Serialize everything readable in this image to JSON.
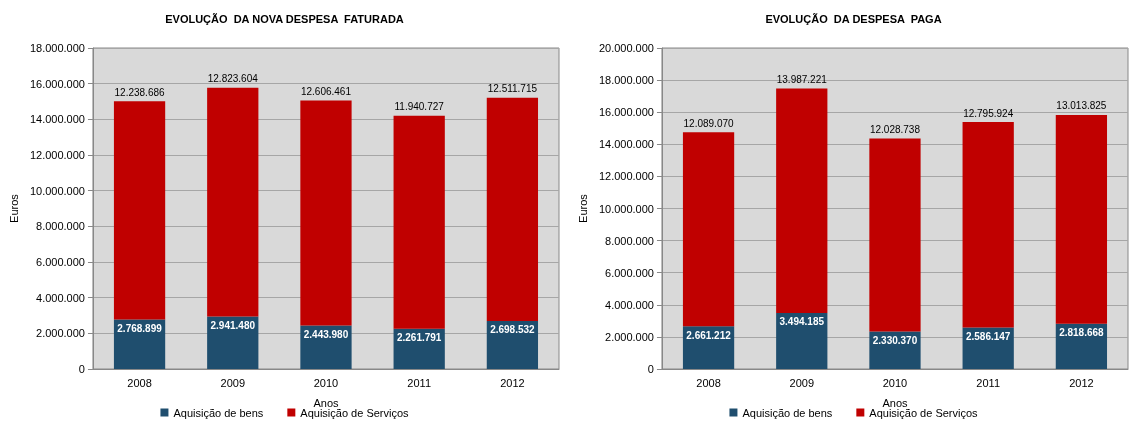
{
  "chart_data": [
    {
      "type": "bar",
      "title": "EVOLUÇÃO  DA NOVA DESPESA  FATURADA",
      "xlabel": "Anos",
      "ylabel": "Euros",
      "categories": [
        "2008",
        "2009",
        "2010",
        "2011",
        "2012"
      ],
      "stacked": true,
      "series": [
        {
          "name": "Aquisição de bens",
          "color": "#1f4e6e",
          "values": [
            2768899,
            2941480,
            2443980,
            2261791,
            2698532
          ],
          "value_labels": [
            "2.768.899",
            "2.941.480",
            "2.443.980",
            "2.261.791",
            "2.698.532"
          ]
        },
        {
          "name": "Aquisição de Serviços",
          "color": "#c00000",
          "values": [
            12238686,
            12823604,
            12606461,
            11940727,
            12511715
          ],
          "value_labels": [
            "12.238.686",
            "12.823.604",
            "12.606.461",
            "11.940.727",
            "12.511.715"
          ]
        }
      ],
      "ylim": [
        0,
        18000000
      ],
      "yticks": [
        0,
        {
          "value": 2000000,
          "label": "2.000.000"
        },
        {
          "value": 4000000,
          "label": "4.000.000"
        },
        {
          "value": 6000000,
          "label": "6.000.000"
        },
        {
          "value": 8000000,
          "label": "8.000.000"
        },
        {
          "value": 10000000,
          "label": "10.000.000"
        },
        {
          "value": 12000000,
          "label": "12.000.000"
        },
        {
          "value": 14000000,
          "label": "14.000.000"
        },
        {
          "value": 16000000,
          "label": "16.000.000"
        },
        {
          "value": 18000000,
          "label": "18.000.000"
        }
      ],
      "grid": "y",
      "legend": "bottom"
    },
    {
      "type": "bar",
      "title": "EVOLUÇÃO  DA DESPESA  PAGA",
      "xlabel": "Anos",
      "ylabel": "Euros",
      "categories": [
        "2008",
        "2009",
        "2010",
        "2011",
        "2012"
      ],
      "stacked": true,
      "series": [
        {
          "name": "Aquisição de bens",
          "color": "#1f4e6e",
          "values": [
            2661212,
            3494185,
            2330370,
            2586147,
            2818668
          ],
          "value_labels": [
            "2.661.212",
            "3.494.185",
            "2.330.370",
            "2.586.147",
            "2.818.668"
          ]
        },
        {
          "name": "Aquisição de Serviços",
          "color": "#c00000",
          "values": [
            12089070,
            13987221,
            12028738,
            12795924,
            13013825
          ],
          "value_labels": [
            "12.089.070",
            "13.987.221",
            "12.028.738",
            "12.795.924",
            "13.013.825"
          ]
        }
      ],
      "ylim": [
        0,
        20000000
      ],
      "yticks": [
        0,
        {
          "value": 2000000,
          "label": "2.000.000"
        },
        {
          "value": 4000000,
          "label": "4.000.000"
        },
        {
          "value": 6000000,
          "label": "6.000.000"
        },
        {
          "value": 8000000,
          "label": "8.000.000"
        },
        {
          "value": 10000000,
          "label": "10.000.000"
        },
        {
          "value": 12000000,
          "label": "12.000.000"
        },
        {
          "value": 14000000,
          "label": "14.000.000"
        },
        {
          "value": 16000000,
          "label": "16.000.000"
        },
        {
          "value": 18000000,
          "label": "18.000.000"
        },
        {
          "value": 20000000,
          "label": "20.000.000"
        }
      ],
      "grid": "y",
      "legend": "bottom"
    }
  ]
}
